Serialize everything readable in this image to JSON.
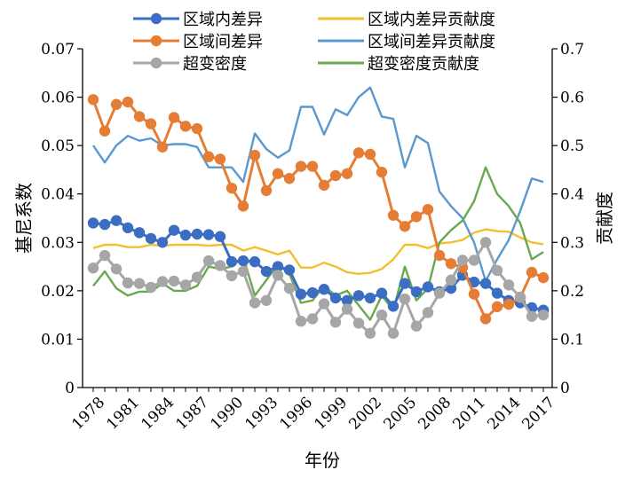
{
  "chart_data": {
    "type": "line",
    "title": "",
    "xlabel": "年份",
    "ylabel": "基尼系数",
    "y2label": "贡献度",
    "ylim": [
      0,
      0.07
    ],
    "y2lim": [
      0,
      0.7
    ],
    "yticks": [
      "0",
      "0.01",
      "0.02",
      "0.03",
      "0.04",
      "0.05",
      "0.06",
      "0.07"
    ],
    "y2ticks": [
      "0",
      "0.1",
      "0.2",
      "0.3",
      "0.4",
      "0.5",
      "0.6",
      "0.7"
    ],
    "x_tick_labels": [
      "1978",
      "1981",
      "1984",
      "1987",
      "1990",
      "1993",
      "1996",
      "1999",
      "2002",
      "2005",
      "2008",
      "2011",
      "2014",
      "2017"
    ],
    "x": [
      1978,
      1979,
      1980,
      1981,
      1982,
      1983,
      1984,
      1985,
      1986,
      1987,
      1988,
      1989,
      1990,
      1991,
      1992,
      1993,
      1994,
      1995,
      1996,
      1997,
      1998,
      1999,
      2000,
      2001,
      2002,
      2003,
      2004,
      2005,
      2006,
      2007,
      2008,
      2009,
      2010,
      2011,
      2012,
      2013,
      2014,
      2015,
      2016,
      2017
    ],
    "legend_position": "top",
    "series": [
      {
        "name": "区域内差异",
        "axis": "left",
        "marker": true,
        "color": "#3b6ec2",
        "values": [
          0.034,
          0.0337,
          0.0345,
          0.033,
          0.032,
          0.0308,
          0.03,
          0.0325,
          0.0315,
          0.0317,
          0.0316,
          0.0312,
          0.026,
          0.0262,
          0.026,
          0.024,
          0.025,
          0.0243,
          0.0193,
          0.0196,
          0.0203,
          0.0185,
          0.018,
          0.019,
          0.0185,
          0.0195,
          0.0168,
          0.0215,
          0.0198,
          0.0208,
          0.0198,
          0.0205,
          0.0232,
          0.0218,
          0.0215,
          0.0195,
          0.018,
          0.0175,
          0.0165,
          0.016
        ]
      },
      {
        "name": "区域间差异",
        "axis": "left",
        "marker": true,
        "color": "#e57d35",
        "values": [
          0.0595,
          0.053,
          0.0585,
          0.059,
          0.056,
          0.0545,
          0.0497,
          0.0558,
          0.054,
          0.0535,
          0.0477,
          0.0472,
          0.0412,
          0.0375,
          0.048,
          0.0407,
          0.0442,
          0.0432,
          0.0457,
          0.0457,
          0.0418,
          0.0438,
          0.0442,
          0.0485,
          0.0482,
          0.0445,
          0.0356,
          0.0333,
          0.0353,
          0.0368,
          0.0273,
          0.0256,
          0.0248,
          0.0193,
          0.0142,
          0.0167,
          0.0172,
          0.0186,
          0.0238,
          0.0227
        ]
      },
      {
        "name": "超变密度",
        "axis": "left",
        "marker": true,
        "color": "#a6a6a6",
        "values": [
          0.0247,
          0.0273,
          0.0245,
          0.0216,
          0.0215,
          0.0207,
          0.0219,
          0.022,
          0.0212,
          0.0228,
          0.0262,
          0.0252,
          0.0231,
          0.024,
          0.0175,
          0.018,
          0.0232,
          0.0205,
          0.0137,
          0.0142,
          0.0173,
          0.0135,
          0.0162,
          0.0133,
          0.0112,
          0.015,
          0.0112,
          0.0183,
          0.0127,
          0.0155,
          0.0195,
          0.0222,
          0.0263,
          0.0263,
          0.03,
          0.0242,
          0.0212,
          0.0187,
          0.0147,
          0.015
        ]
      },
      {
        "name": "区域内差异贡献度",
        "axis": "right",
        "marker": false,
        "color": "#f2c02e",
        "values": [
          0.288,
          0.295,
          0.295,
          0.29,
          0.29,
          0.295,
          0.293,
          0.295,
          0.295,
          0.295,
          0.293,
          0.295,
          0.295,
          0.283,
          0.29,
          0.283,
          0.275,
          0.283,
          0.248,
          0.248,
          0.258,
          0.25,
          0.238,
          0.235,
          0.237,
          0.245,
          0.265,
          0.295,
          0.295,
          0.288,
          0.298,
          0.3,
          0.305,
          0.32,
          0.327,
          0.323,
          0.322,
          0.31,
          0.3,
          0.296
        ]
      },
      {
        "name": "区域间差异贡献度",
        "axis": "right",
        "marker": false,
        "color": "#5a99d0",
        "values": [
          0.5,
          0.465,
          0.5,
          0.52,
          0.51,
          0.515,
          0.5,
          0.503,
          0.503,
          0.497,
          0.455,
          0.455,
          0.455,
          0.425,
          0.525,
          0.493,
          0.475,
          0.49,
          0.58,
          0.58,
          0.523,
          0.575,
          0.563,
          0.6,
          0.62,
          0.56,
          0.555,
          0.455,
          0.52,
          0.505,
          0.405,
          0.375,
          0.35,
          0.3,
          0.22,
          0.265,
          0.305,
          0.365,
          0.432,
          0.425
        ]
      },
      {
        "name": "超变密度贡献度",
        "axis": "right",
        "marker": false,
        "color": "#6aa84f",
        "values": [
          0.21,
          0.24,
          0.205,
          0.19,
          0.198,
          0.198,
          0.215,
          0.2,
          0.2,
          0.21,
          0.25,
          0.245,
          0.25,
          0.27,
          0.19,
          0.222,
          0.255,
          0.235,
          0.175,
          0.18,
          0.21,
          0.19,
          0.2,
          0.17,
          0.14,
          0.19,
          0.16,
          0.25,
          0.18,
          0.205,
          0.3,
          0.325,
          0.345,
          0.385,
          0.455,
          0.4,
          0.375,
          0.34,
          0.265,
          0.28
        ]
      }
    ]
  }
}
